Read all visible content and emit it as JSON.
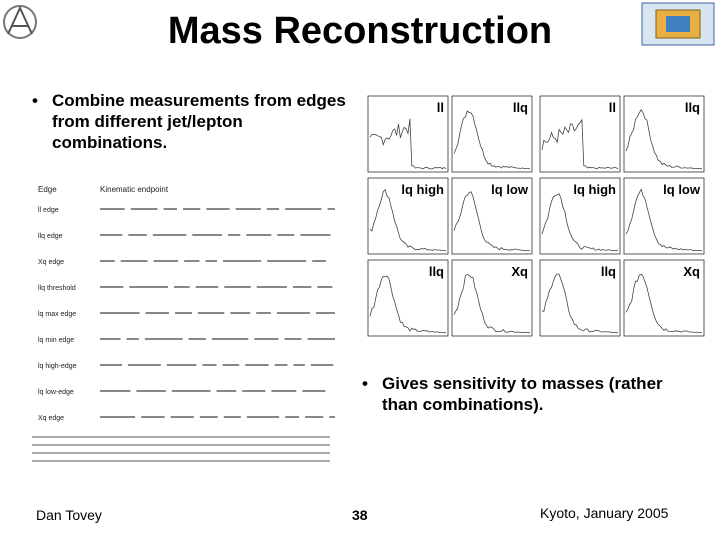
{
  "title": "Mass Reconstruction",
  "bullets": [
    "Combine measurements from edges from different jet/lepton combinations.",
    "Gives sensitivity to masses (rather than combinations)."
  ],
  "table": {
    "header": [
      "Edge",
      "Kinematic endpoint"
    ],
    "rows": [
      "ll edge",
      "llq edge",
      "Xq edge",
      "llq threshold",
      "lq max edge",
      "lq min edge",
      "lq high-edge",
      "lq low-edge",
      "Xq edge"
    ]
  },
  "panels": [
    "ll",
    "llq",
    "ll",
    "llq",
    "lq high",
    "lq low",
    "lq high",
    "lq low",
    "llq",
    "Xq",
    "llq",
    "Xq"
  ],
  "footer": {
    "author": "Dan Tovey",
    "page": "38",
    "venue": "Kyoto, January 2005"
  }
}
